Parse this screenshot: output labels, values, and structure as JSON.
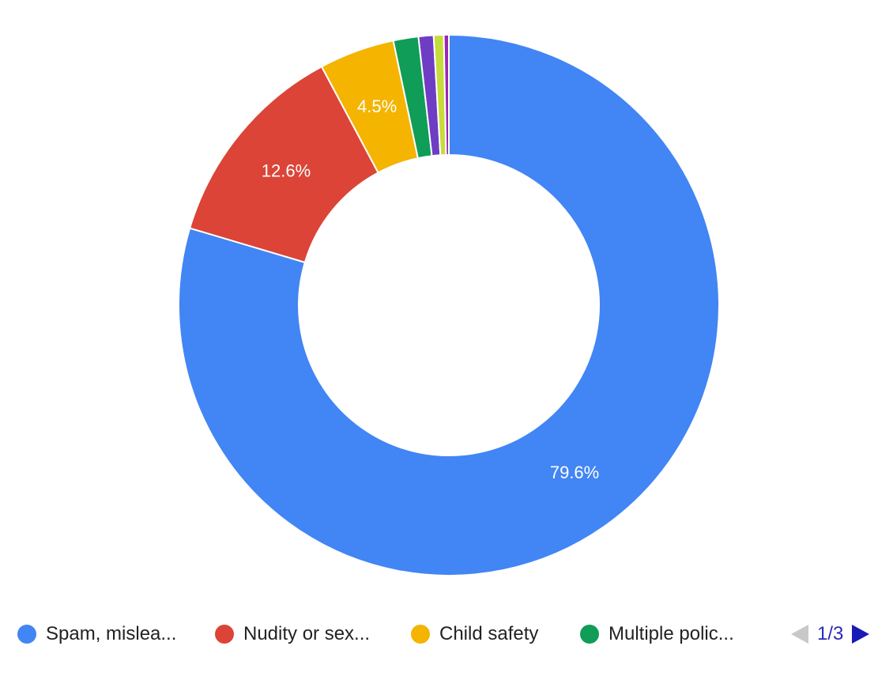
{
  "chart_data": {
    "type": "pie",
    "style": "donut",
    "title": "",
    "slices": [
      {
        "label": "Spam, mislea...",
        "value": 79.6,
        "display": "79.6%",
        "color": "#4285f4"
      },
      {
        "label": "Nudity or sex...",
        "value": 12.6,
        "display": "12.6%",
        "color": "#db4437"
      },
      {
        "label": "Child safety",
        "value": 4.5,
        "display": "4.5%",
        "color": "#f4b400"
      },
      {
        "label": "Multiple polic...",
        "value": 1.5,
        "display": "",
        "color": "#0f9d58"
      },
      {
        "label": "",
        "value": 0.9,
        "display": "",
        "color": "#6f3cc4"
      },
      {
        "label": "",
        "value": 0.6,
        "display": "",
        "color": "#c6dc3a"
      },
      {
        "label": "",
        "value": 0.3,
        "display": "",
        "color": "#9c27b0"
      }
    ],
    "legend": {
      "position": "bottom",
      "visible_items": [
        {
          "label": "Spam, mislea...",
          "color": "#4285f4"
        },
        {
          "label": "Nudity or sex...",
          "color": "#db4437"
        },
        {
          "label": "Child safety",
          "color": "#f4b400"
        },
        {
          "label": "Multiple polic...",
          "color": "#0f9d58"
        }
      ],
      "page_indicator": "1/3"
    }
  },
  "icons": {
    "prev": "triangle-left-icon",
    "next": "triangle-right-icon"
  },
  "colors": {
    "pager_disabled": "#c8c8c8",
    "pager_active": "#1a1ab8"
  }
}
